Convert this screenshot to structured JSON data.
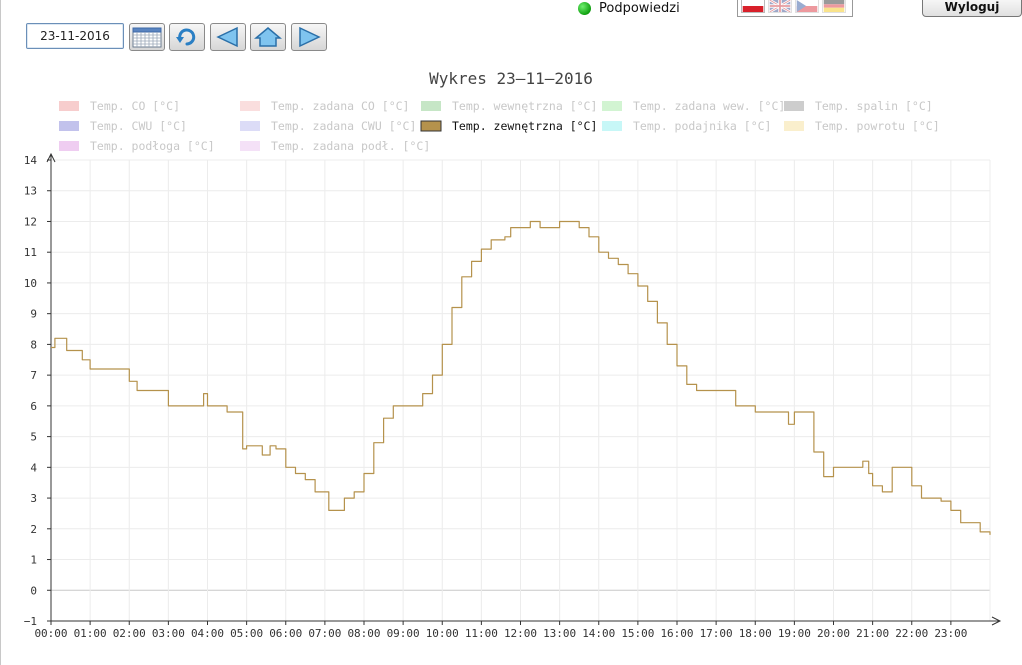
{
  "toolbar": {
    "date_value": "23-11-2016",
    "buttons": [
      {
        "name": "calendar-button",
        "icon": "calendar-icon"
      },
      {
        "name": "refresh-button",
        "icon": "refresh-icon"
      },
      {
        "name": "prev-day-button",
        "icon": "arrow-left-icon"
      },
      {
        "name": "home-button",
        "icon": "home-icon"
      },
      {
        "name": "next-day-button",
        "icon": "arrow-right-icon"
      }
    ]
  },
  "hints": {
    "label": "Podpowiedzi",
    "indicator_color": "#1eb81e"
  },
  "languages": [
    "pl",
    "en",
    "cz",
    "de"
  ],
  "logout_label": "Wyloguj",
  "chart_data": {
    "type": "line",
    "title": "Wykres 23–11–2016",
    "x_ticks": [
      "00:00",
      "01:00",
      "02:00",
      "03:00",
      "04:00",
      "05:00",
      "06:00",
      "07:00",
      "08:00",
      "09:00",
      "10:00",
      "11:00",
      "12:00",
      "13:00",
      "14:00",
      "15:00",
      "16:00",
      "17:00",
      "18:00",
      "19:00",
      "20:00",
      "21:00",
      "22:00",
      "23:00"
    ],
    "y_ticks": [
      "−1",
      "0",
      "1",
      "2",
      "3",
      "4",
      "5",
      "6",
      "7",
      "8",
      "9",
      "10",
      "11",
      "12",
      "13",
      "14"
    ],
    "ylim": [
      -1,
      14
    ],
    "xlim_hours": [
      0,
      24
    ],
    "grid": true,
    "legend_position": "top",
    "legend": [
      {
        "label": "Temp. CO [°C]",
        "color": "#e87070",
        "active": false
      },
      {
        "label": "Temp. zadana CO [°C]",
        "color": "#f2a0a0",
        "active": false
      },
      {
        "label": "Temp. wewnętrzna [°C]",
        "color": "#5cb85c",
        "active": false
      },
      {
        "label": "Temp. zadana wew. [°C]",
        "color": "#7ee07e",
        "active": false
      },
      {
        "label": "Temp. spalin [°C]",
        "color": "#707070",
        "active": false
      },
      {
        "label": "Temp. CWU [°C]",
        "color": "#5050c8",
        "active": false
      },
      {
        "label": "Temp. zadana CWU [°C]",
        "color": "#9a9ae8",
        "active": false
      },
      {
        "label": "Temp. zewnętrzna [°C]",
        "color": "#b5924c",
        "active": true
      },
      {
        "label": "Temp. podajnika [°C]",
        "color": "#5ee8e8",
        "active": false
      },
      {
        "label": "Temp. powrotu [°C]",
        "color": "#f0d070",
        "active": false
      },
      {
        "label": "Temp. podłoga [°C]",
        "color": "#d070d8",
        "active": false
      },
      {
        "label": "Temp. zadana podł. [°C]",
        "color": "#e0a8e8",
        "active": false
      }
    ],
    "series": [
      {
        "name": "Temp. zewnętrzna [°C]",
        "color": "#b5924c",
        "x": [
          0,
          0.1,
          0.25,
          0.4,
          0.55,
          0.8,
          1.0,
          1.1,
          1.25,
          1.5,
          1.75,
          2.0,
          2.2,
          2.5,
          2.75,
          3.0,
          3.25,
          3.5,
          3.75,
          3.9,
          4.0,
          4.25,
          4.5,
          4.75,
          4.9,
          5.0,
          5.25,
          5.4,
          5.6,
          5.75,
          6.0,
          6.25,
          6.5,
          6.75,
          6.95,
          7.1,
          7.3,
          7.5,
          7.75,
          8.0,
          8.25,
          8.5,
          8.75,
          9.0,
          9.2,
          9.5,
          9.75,
          10.0,
          10.25,
          10.5,
          10.75,
          11.0,
          11.25,
          11.5,
          11.6,
          11.75,
          12.0,
          12.25,
          12.5,
          12.75,
          13.0,
          13.25,
          13.5,
          13.75,
          14.0,
          14.25,
          14.5,
          14.75,
          15.0,
          15.25,
          15.5,
          15.75,
          16.0,
          16.25,
          16.5,
          16.75,
          17.0,
          17.25,
          17.5,
          17.75,
          18.0,
          18.25,
          18.5,
          18.75,
          18.85,
          19.0,
          19.25,
          19.5,
          19.75,
          20.0,
          20.25,
          20.5,
          20.75,
          20.9,
          21.0,
          21.25,
          21.5,
          21.75,
          22.0,
          22.25,
          22.5,
          22.75,
          23.0,
          23.25,
          23.5,
          23.75,
          23.9,
          24.0
        ],
        "values": [
          7.9,
          8.2,
          8.2,
          7.8,
          7.8,
          7.5,
          7.2,
          7.2,
          7.2,
          7.2,
          7.2,
          6.8,
          6.5,
          6.5,
          6.5,
          6.0,
          6.0,
          6.0,
          6.0,
          6.4,
          6.0,
          6.0,
          5.8,
          5.8,
          4.6,
          4.7,
          4.7,
          4.4,
          4.7,
          4.6,
          4.0,
          3.8,
          3.6,
          3.2,
          3.2,
          2.6,
          2.6,
          3.0,
          3.2,
          3.8,
          4.8,
          5.6,
          6.0,
          6.0,
          6.0,
          6.4,
          7.0,
          8.0,
          9.2,
          10.2,
          10.7,
          11.1,
          11.4,
          11.4,
          11.5,
          11.8,
          11.8,
          12.0,
          11.8,
          11.8,
          12.0,
          12.0,
          11.8,
          11.5,
          11.0,
          10.8,
          10.6,
          10.3,
          9.9,
          9.4,
          8.7,
          8.0,
          7.3,
          6.7,
          6.5,
          6.5,
          6.5,
          6.5,
          6.0,
          6.0,
          5.8,
          5.8,
          5.8,
          5.8,
          5.4,
          5.8,
          5.8,
          4.5,
          3.7,
          4.0,
          4.0,
          4.0,
          4.2,
          3.8,
          3.4,
          3.2,
          4.0,
          4.0,
          3.4,
          3.0,
          3.0,
          2.9,
          2.6,
          2.2,
          2.2,
          1.9,
          1.9,
          1.8
        ]
      }
    ]
  }
}
